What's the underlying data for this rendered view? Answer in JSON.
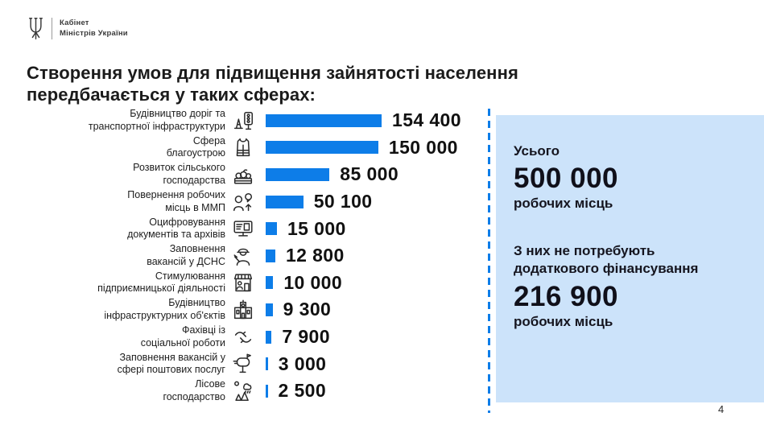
{
  "logo": {
    "line1": "Кабінет",
    "line2": "Міністрів України"
  },
  "title": "Створення умов для підвищення зайнятості населення\nпередбачається у таких сферах:",
  "chart_data": {
    "type": "bar",
    "orientation": "horizontal",
    "title": "Створення умов для підвищення зайнятості населення передбачається у таких сферах:",
    "categories": [
      "Будівництво доріг та\nтранспортної інфраструктури",
      "Сфера\nблагоустрою",
      "Розвиток сільського\nгосподарства",
      "Повернення робочих\nмісць в ММП",
      "Оцифровування\nдокументів та архівів",
      "Заповнення\nвакансій у ДСНС",
      "Стимулювання\nпідприємницької діяльності",
      "Будівництво\nінфраструктурних об'єктів",
      "Фахівці із\nсоціальної роботи",
      "Заповнення вакансій у\nсфері поштових послуг",
      "Лісове\nгосподарство"
    ],
    "values": [
      154400,
      150000,
      85000,
      50100,
      15000,
      12800,
      10000,
      9300,
      7900,
      3000,
      2500
    ],
    "value_labels": [
      "154 400",
      "150 000",
      "85 000",
      "50 100",
      "15 000",
      "12 800",
      "10 000",
      "9 300",
      "7 900",
      "3 000",
      "2 500"
    ],
    "icons": [
      "road-infrastructure-icon",
      "safety-vest-icon",
      "agriculture-icon",
      "jobs-return-icon",
      "digitization-icon",
      "rescue-service-icon",
      "entrepreneurship-icon",
      "infrastructure-building-icon",
      "social-work-icon",
      "postal-service-icon",
      "forestry-icon"
    ],
    "bar_color": "#0d7de8",
    "xlim": [
      0,
      160000
    ],
    "grid": false,
    "legend": false,
    "unit": "робочих місць"
  },
  "summary_panel": {
    "total_label": "Усього",
    "total_value": "500 000",
    "total_unit": "робочих місць",
    "no_funding_label": "З них не потребують\nдодаткового фінансування",
    "no_funding_value": "216 900",
    "no_funding_unit": "робочих місць"
  },
  "page_number": "4",
  "colors": {
    "bar_blue": "#0d7de8",
    "panel_bg": "#cce3fa",
    "dashed_line": "#0d7de8",
    "text_dark": "#1b1b1b"
  }
}
